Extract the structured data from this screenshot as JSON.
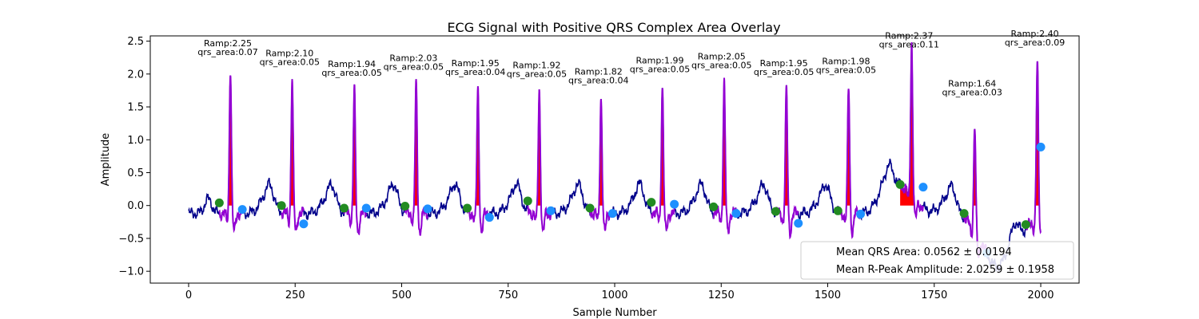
{
  "chart_data": {
    "type": "line",
    "title": "ECG Signal with Positive QRS Complex Area Overlay",
    "xlabel": "Sample Number",
    "ylabel": "Amplitude",
    "xlim": [
      -90,
      2090
    ],
    "ylim": [
      -1.18,
      2.58
    ],
    "xticks": [
      0,
      250,
      500,
      750,
      1000,
      1250,
      1500,
      1750,
      2000
    ],
    "yticks": [
      -1.0,
      -0.5,
      0.0,
      0.5,
      1.0,
      1.5,
      2.0,
      2.5
    ],
    "xtick_labels": [
      "0",
      "250",
      "500",
      "750",
      "1000",
      "1250",
      "1500",
      "1750",
      "2000"
    ],
    "ytick_labels": [
      "−1.0",
      "−0.5",
      "0.0",
      "0.5",
      "1.0",
      "1.5",
      "2.0",
      "2.5"
    ],
    "grid": false,
    "legend_placement": "lower-right",
    "legend": [
      "Mean QRS Area: 0.0562 ± 0.0194",
      "Mean R-Peak Amplitude: 2.0259 ± 0.1958"
    ],
    "colors": {
      "signal": "#00008b",
      "qrs_segment": "#9400d3",
      "qrs_area_fill": "#ff0000",
      "qrs_onset": "#228b22",
      "qrs_offset": "#1e90ff"
    },
    "beats": [
      {
        "r": 98,
        "ramp": 2.25,
        "area": 0.07,
        "ramp_label": "Ramp:2.25",
        "area_label": "qrs_area:0.07",
        "onset": [
          72,
          0.04
        ],
        "offset": [
          126,
          -0.06
        ]
      },
      {
        "r": 243,
        "ramp": 2.1,
        "area": 0.05,
        "ramp_label": "Ramp:2.10",
        "area_label": "qrs_area:0.05",
        "onset": [
          218,
          0.0
        ],
        "offset": [
          270,
          -0.28
        ]
      },
      {
        "r": 389,
        "ramp": 1.94,
        "area": 0.05,
        "ramp_label": "Ramp:1.94",
        "area_label": "qrs_area:0.05",
        "onset": [
          365,
          -0.04
        ],
        "offset": [
          417,
          -0.04
        ]
      },
      {
        "r": 534,
        "ramp": 2.03,
        "area": 0.05,
        "ramp_label": "Ramp:2.03",
        "area_label": "qrs_area:0.05",
        "onset": [
          508,
          -0.01
        ],
        "offset": [
          561,
          -0.05
        ]
      },
      {
        "r": 679,
        "ramp": 1.95,
        "area": 0.04,
        "ramp_label": "Ramp:1.95",
        "area_label": "qrs_area:0.04",
        "onset": [
          654,
          -0.04
        ],
        "offset": [
          706,
          -0.18
        ]
      },
      {
        "r": 823,
        "ramp": 1.92,
        "area": 0.05,
        "ramp_label": "Ramp:1.92",
        "area_label": "qrs_area:0.05",
        "onset": [
          796,
          0.07
        ],
        "offset": [
          850,
          -0.08
        ]
      },
      {
        "r": 968,
        "ramp": 1.82,
        "area": 0.04,
        "ramp_label": "Ramp:1.82",
        "area_label": "qrs_area:0.04",
        "onset": [
          942,
          -0.04
        ],
        "offset": [
          995,
          -0.12
        ]
      },
      {
        "r": 1112,
        "ramp": 1.99,
        "area": 0.05,
        "ramp_label": "Ramp:1.99",
        "area_label": "qrs_area:0.05",
        "onset": [
          1086,
          0.05
        ],
        "offset": [
          1140,
          0.02
        ]
      },
      {
        "r": 1257,
        "ramp": 2.05,
        "area": 0.05,
        "ramp_label": "Ramp:2.05",
        "area_label": "qrs_area:0.05",
        "onset": [
          1232,
          -0.02
        ],
        "offset": [
          1285,
          -0.12
        ]
      },
      {
        "r": 1403,
        "ramp": 1.95,
        "area": 0.05,
        "ramp_label": "Ramp:1.95",
        "area_label": "qrs_area:0.05",
        "onset": [
          1378,
          -0.09
        ],
        "offset": [
          1431,
          -0.27
        ]
      },
      {
        "r": 1549,
        "ramp": 1.98,
        "area": 0.05,
        "ramp_label": "Ramp:1.98",
        "area_label": "qrs_area:0.05",
        "onset": [
          1524,
          -0.08
        ],
        "offset": [
          1577,
          -0.13
        ]
      },
      {
        "r": 1697,
        "ramp": 2.37,
        "area": 0.11,
        "ramp_label": "Ramp:2.37",
        "area_label": "qrs_area:0.11",
        "onset": [
          1670,
          0.32
        ],
        "offset": [
          1724,
          0.28
        ]
      },
      {
        "r": 1845,
        "ramp": 1.64,
        "area": 0.03,
        "ramp_label": "Ramp:1.64",
        "area_label": "qrs_area:0.03",
        "onset": [
          1820,
          -0.12
        ],
        "offset": [
          1873,
          -0.72
        ]
      },
      {
        "r": 1992,
        "ramp": 2.4,
        "area": 0.09,
        "ramp_label": "Ramp:2.40",
        "area_label": "qrs_area:0.09",
        "onset": [
          1965,
          -0.29
        ],
        "offset": [
          2000,
          0.89
        ]
      }
    ]
  }
}
